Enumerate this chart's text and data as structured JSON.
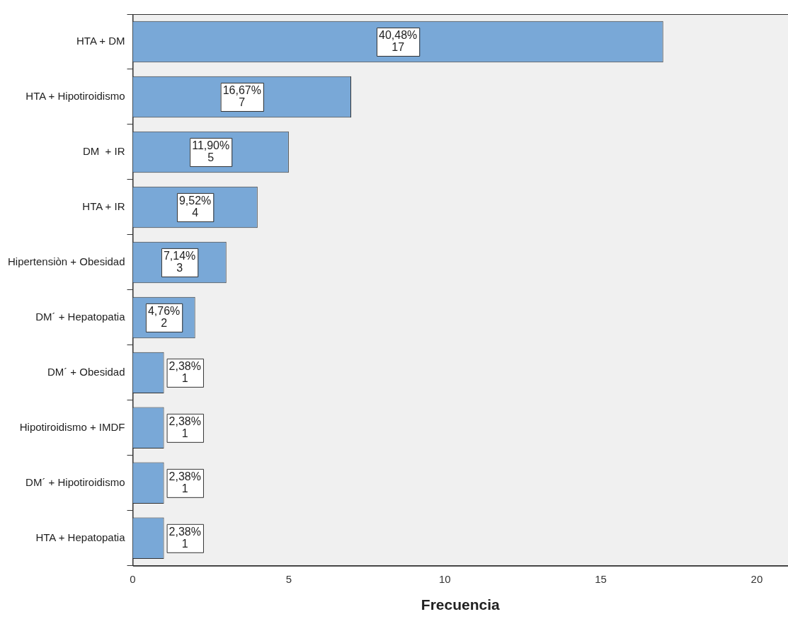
{
  "chart_data": {
    "type": "bar",
    "orientation": "horizontal",
    "xlabel": "Frecuencia",
    "categories": [
      "HTA + DM",
      "HTA + Hipotiroidismo",
      "DM  + IR",
      "HTA + IR",
      "Hipertensiòn + Obesidad",
      "DM´ + Hepatopatia",
      "DM´ + Obesidad",
      "Hipotiroidismo + IMDF",
      "DM´ + Hipotiroidismo",
      "HTA + Hepatopatia"
    ],
    "values": [
      17,
      7,
      5,
      4,
      3,
      2,
      1,
      1,
      1,
      1
    ],
    "value_labels": [
      "40,48%\n17",
      "16,67%\n7",
      "11,90%\n5",
      "9,52%\n4",
      "7,14%\n3",
      "4,76%\n2",
      "2,38%\n1",
      "2,38%\n1",
      "2,38%\n1",
      "2,38%\n1"
    ],
    "color": "#79a8d7",
    "xlim": [
      0,
      21
    ],
    "xticks": [
      0,
      5,
      10,
      15,
      20
    ],
    "grid": false,
    "legend": false
  }
}
